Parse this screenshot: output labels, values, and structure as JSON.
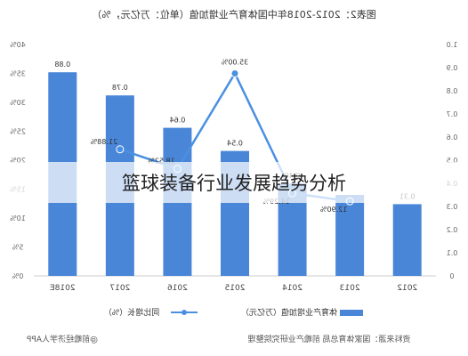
{
  "overlay_caption": "篮球装备行业发展趋势分析",
  "title": "图表2：2012-2018年中国体育产业增加值（单位：万亿元，%）",
  "source": "资料来源：国家体育总局  前瞻产业研究院整理",
  "watermark": "@前瞻经济学人APP",
  "legend": {
    "bar_label": "体育产业增加值（万亿元）",
    "line_label": "同比增长（%）"
  },
  "colors": {
    "bar": "#4a86d8",
    "line": "#4a90e2",
    "axis_text": "#666666"
  },
  "chart_data": {
    "type": "bar",
    "mirrored": true,
    "categories": [
      "2018E",
      "2017",
      "2016",
      "2015",
      "2014",
      "2013",
      "2012"
    ],
    "bar_series": {
      "name": "体育产业增加值（万亿元）",
      "values": [
        0.88,
        0.78,
        0.64,
        0.54,
        0.4,
        0.35,
        0.31
      ],
      "labels": [
        "0.88",
        "0.78",
        "0.64",
        "0.54",
        "0.40",
        "",
        "0.31"
      ],
      "axis": "right",
      "ylim": [
        0,
        1.0
      ],
      "ticks": [
        "0",
        "0.1",
        "0.2",
        "0.3",
        "0.4",
        "0.5",
        "0.6",
        "0.7",
        "0.8",
        "0.9",
        "1.0"
      ]
    },
    "line_series": {
      "name": "同比增长（%）",
      "values": [
        null,
        21.88,
        18.52,
        35.0,
        14.29,
        12.9,
        null
      ],
      "labels": [
        "",
        "21.88%",
        "18.52%",
        "35.00%",
        "14.29%",
        "12.90%",
        ""
      ],
      "axis": "left",
      "ylim": [
        0,
        40
      ],
      "ticks": [
        "0%",
        "5%",
        "10%",
        "15%",
        "20%",
        "25%",
        "30%",
        "35%",
        "40%"
      ]
    },
    "grid": false,
    "legend_position": "bottom"
  }
}
